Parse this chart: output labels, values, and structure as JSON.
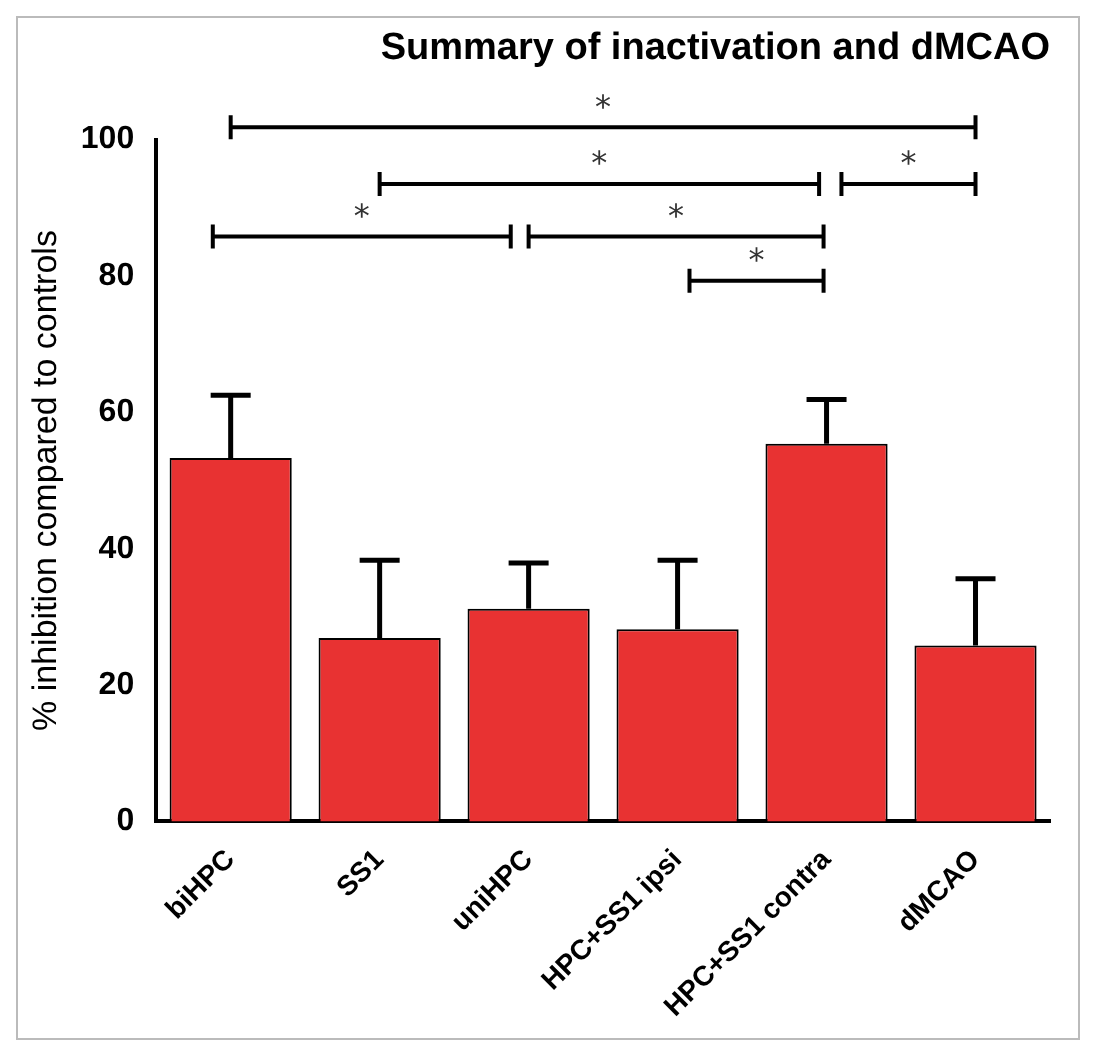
{
  "chart_data": {
    "type": "bar",
    "title": "Summary of inactivation and dMCAO",
    "ylabel": "% inhibition compared to controls",
    "categories": [
      "biHPC",
      "SS1",
      "uniHPC",
      "HPC+SS1 ipsi",
      "HPC+SS1 contra",
      "dMCAO"
    ],
    "values": [
      53.3,
      26.9,
      31.2,
      28.2,
      55.4,
      25.8
    ],
    "errors": [
      [
        53.3,
        62.5
      ],
      [
        26.9,
        38.3
      ],
      [
        31.2,
        37.9
      ],
      [
        28.2,
        38.3
      ],
      [
        55.4,
        61.9
      ],
      [
        25.8,
        35.6
      ]
    ],
    "color": "#e83232",
    "ylim": [
      0,
      100
    ],
    "yticks": [
      0,
      20,
      40,
      60,
      80,
      100
    ],
    "grid": false,
    "legend": false,
    "annotations": [
      "*",
      "*",
      "*",
      "*",
      "*",
      "*"
    ]
  }
}
